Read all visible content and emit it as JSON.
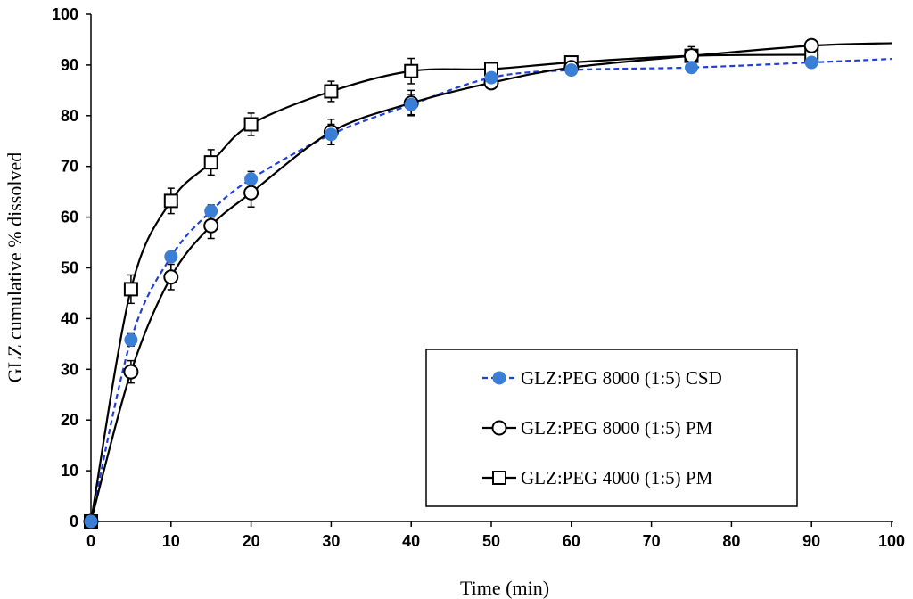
{
  "chart_data": {
    "type": "line",
    "title": "",
    "xlabel": "Time (min)",
    "ylabel": "GLZ cumulative % dissolved",
    "xlim": [
      0,
      100
    ],
    "ylim": [
      0,
      100
    ],
    "xticks": [
      0,
      10,
      20,
      30,
      40,
      50,
      60,
      70,
      80,
      90,
      100
    ],
    "yticks": [
      0,
      10,
      20,
      30,
      40,
      50,
      60,
      70,
      80,
      90,
      100
    ],
    "grid": false,
    "legend_position": "bottom-right",
    "series": [
      {
        "name": "GLZ:PEG 8000 (1:5) CSD",
        "color": "#3a7fd5",
        "fit_color": "#1f3fd6",
        "line_style": "dashed",
        "marker": "filled-circle",
        "x": [
          0,
          5,
          10,
          15,
          20,
          30,
          40,
          50,
          60,
          75,
          90
        ],
        "y": [
          0,
          35.8,
          52.2,
          61.2,
          67.5,
          76.3,
          82.2,
          87.5,
          89.0,
          89.5,
          90.5
        ],
        "error": [
          0,
          1.2,
          1.0,
          1.2,
          1.5,
          2.0,
          2.0,
          0.8,
          0.8,
          0.6,
          0.6
        ],
        "fit_end": [
          100,
          91.2
        ]
      },
      {
        "name": "GLZ:PEG 8000 (1:5) PM",
        "color": "#000000",
        "fit_color": "#000000",
        "line_style": "solid",
        "marker": "open-circle",
        "x": [
          0,
          5,
          10,
          15,
          20,
          30,
          40,
          50,
          60,
          75,
          90
        ],
        "y": [
          0,
          29.5,
          48.2,
          58.3,
          64.8,
          76.8,
          82.5,
          86.5,
          89.5,
          91.8,
          93.8
        ],
        "error": [
          0,
          2.2,
          2.5,
          2.5,
          2.8,
          2.5,
          2.5,
          0.8,
          1.2,
          1.0,
          0.8
        ],
        "fit_end": [
          100,
          94.3
        ]
      },
      {
        "name": "GLZ:PEG 4000 (1:5) PM",
        "color": "#000000",
        "fit_color": "#000000",
        "line_style": "solid",
        "marker": "open-square",
        "x": [
          0,
          5,
          10,
          15,
          20,
          30,
          40,
          50,
          60,
          75,
          90
        ],
        "y": [
          0,
          45.8,
          63.2,
          70.8,
          78.3,
          84.8,
          88.8,
          89.2,
          90.5,
          91.8,
          92.0
        ],
        "error": [
          0,
          2.8,
          2.5,
          2.5,
          2.2,
          2.0,
          2.5,
          1.2,
          0.8,
          1.8,
          1.0
        ],
        "fit_end": null
      }
    ]
  }
}
